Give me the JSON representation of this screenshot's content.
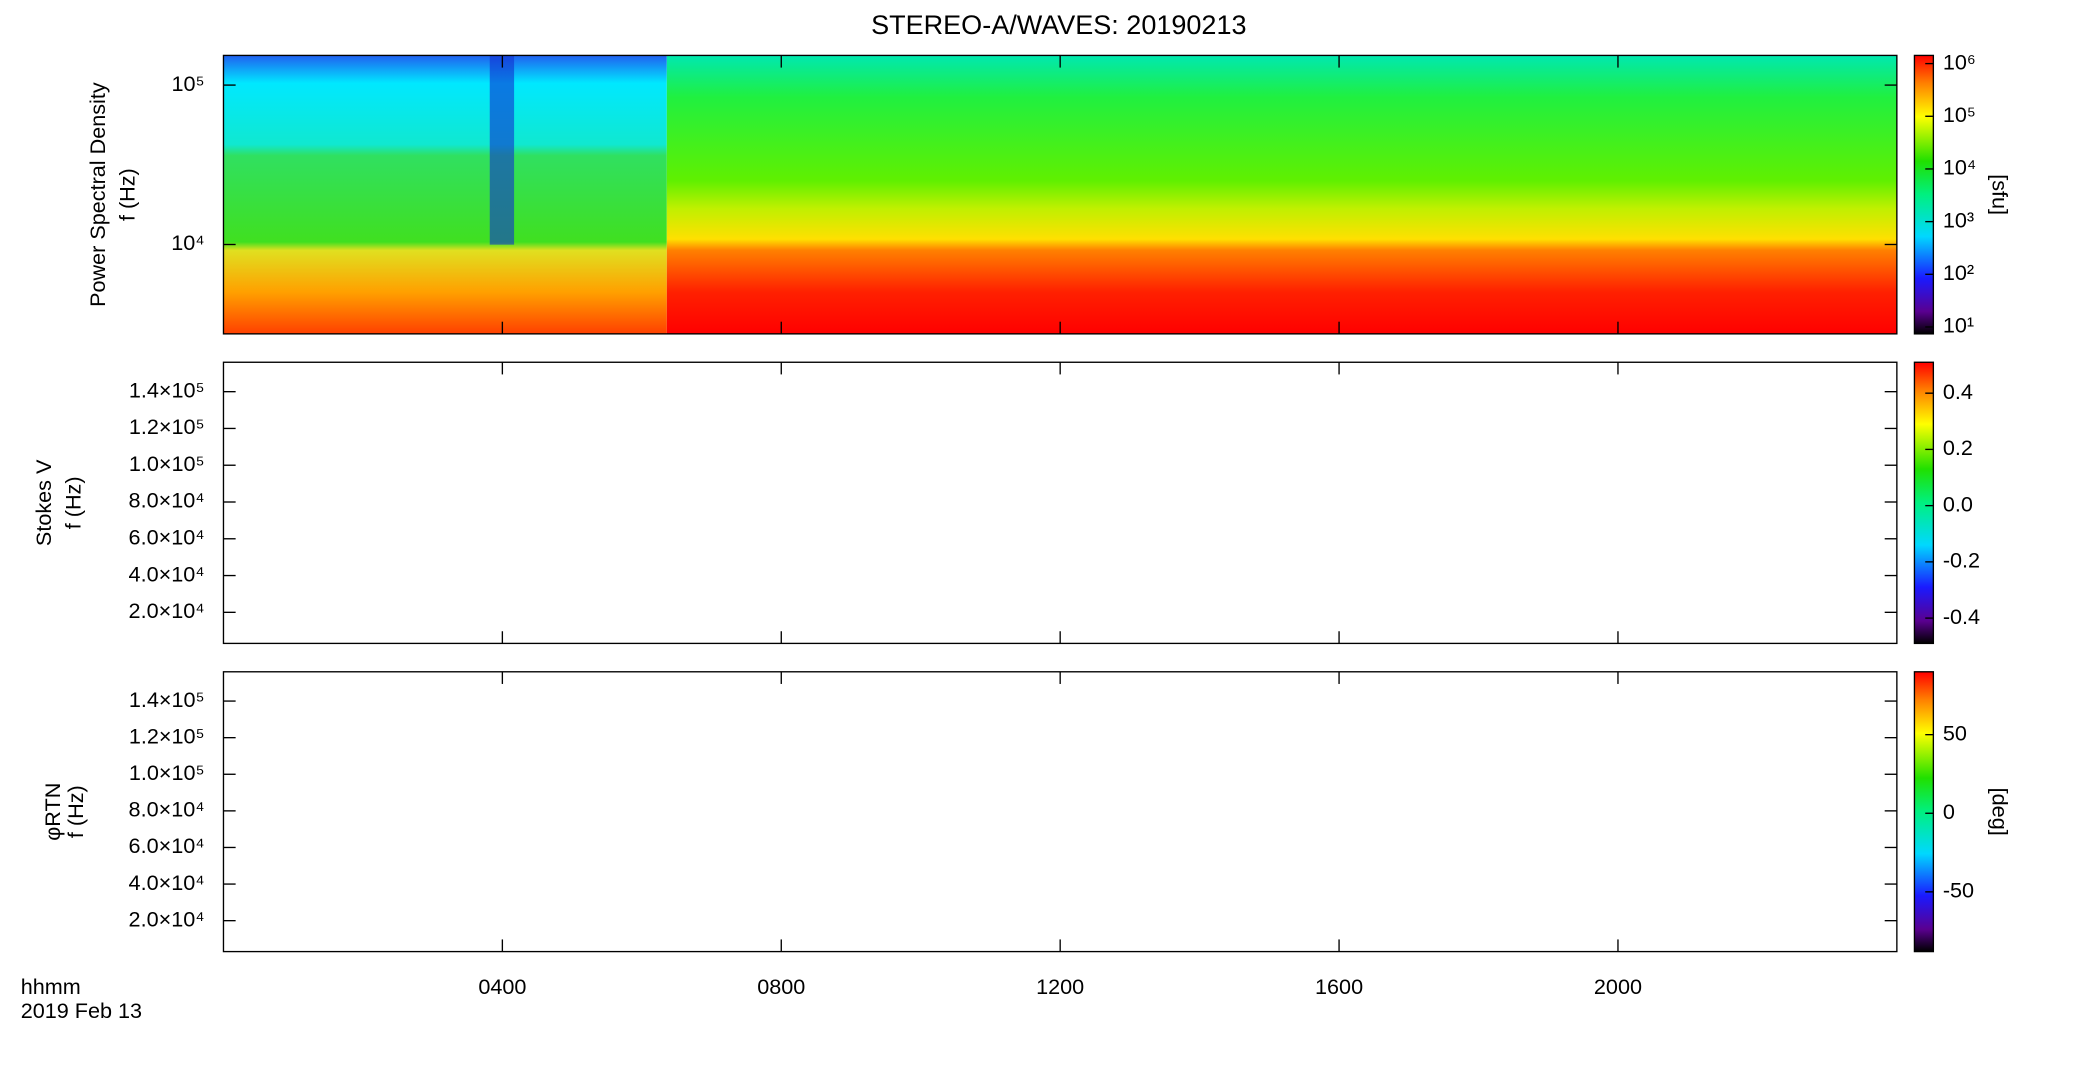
{
  "title": "STEREO-A/WAVES: 20190213",
  "x_axis": {
    "label": "hhmm",
    "date": "2019 Feb 13",
    "xlim": [
      0,
      24
    ],
    "xticks": [
      {
        "value": 4,
        "label": "0400"
      },
      {
        "value": 8,
        "label": "0800"
      },
      {
        "value": 12,
        "label": "1200"
      },
      {
        "value": 16,
        "label": "1600"
      },
      {
        "value": 20,
        "label": "2000"
      }
    ]
  },
  "chart_data": [
    {
      "type": "heatmap",
      "ylabel": [
        "Power Spectral Density",
        "f (Hz)"
      ],
      "log_y": true,
      "ylim": [
        2750,
        153500
      ],
      "yticks": [
        {
          "value": 10000,
          "label": "10⁴"
        },
        {
          "value": 100000,
          "label": "10⁵"
        }
      ],
      "colorbar": {
        "log": true,
        "lim": [
          7.4,
          1430000
        ],
        "label": "[sfu]",
        "ticks": [
          {
            "value": 10,
            "label": "10¹"
          },
          {
            "value": 100,
            "label": "10²"
          },
          {
            "value": 1000,
            "label": "10³"
          },
          {
            "value": 10000,
            "label": "10⁴"
          },
          {
            "value": 100000,
            "label": "10⁵"
          },
          {
            "value": 1000000,
            "label": "10⁶"
          }
        ]
      }
    },
    {
      "type": "heatmap",
      "ylabel": [
        "Stokes V",
        "f (Hz)"
      ],
      "log_y": false,
      "ylim": [
        3100,
        156000
      ],
      "yticks": [
        {
          "value": 20000,
          "label": "2.0×10⁴"
        },
        {
          "value": 40000,
          "label": "4.0×10⁴"
        },
        {
          "value": 60000,
          "label": "6.0×10⁴"
        },
        {
          "value": 80000,
          "label": "8.0×10⁴"
        },
        {
          "value": 100000,
          "label": "1.0×10⁵"
        },
        {
          "value": 120000,
          "label": "1.2×10⁵"
        },
        {
          "value": 140000,
          "label": "1.4×10⁵"
        }
      ],
      "colorbar": {
        "log": false,
        "lim": [
          -0.49,
          0.51
        ],
        "ticks": [
          {
            "value": -0.4,
            "label": "-0.4"
          },
          {
            "value": -0.2,
            "label": "-0.2"
          },
          {
            "value": 0,
            "label": "0.0"
          },
          {
            "value": 0.2,
            "label": "0.2"
          },
          {
            "value": 0.4,
            "label": "0.4"
          }
        ]
      }
    },
    {
      "type": "heatmap",
      "ylabel": [
        "φRTN",
        "f (Hz)"
      ],
      "log_y": false,
      "ylim": [
        3100,
        156000
      ],
      "yticks": [
        {
          "value": 20000,
          "label": "2.0×10⁴"
        },
        {
          "value": 40000,
          "label": "4.0×10⁴"
        },
        {
          "value": 60000,
          "label": "6.0×10⁴"
        },
        {
          "value": 80000,
          "label": "8.0×10⁴"
        },
        {
          "value": 100000,
          "label": "1.0×10⁵"
        },
        {
          "value": 120000,
          "label": "1.2×10⁵"
        },
        {
          "value": 140000,
          "label": "1.4×10⁵"
        }
      ],
      "colorbar": {
        "log": false,
        "lim": [
          -88,
          90
        ],
        "label": "[deg]",
        "ticks": [
          -50,
          0,
          50
        ]
      }
    }
  ]
}
